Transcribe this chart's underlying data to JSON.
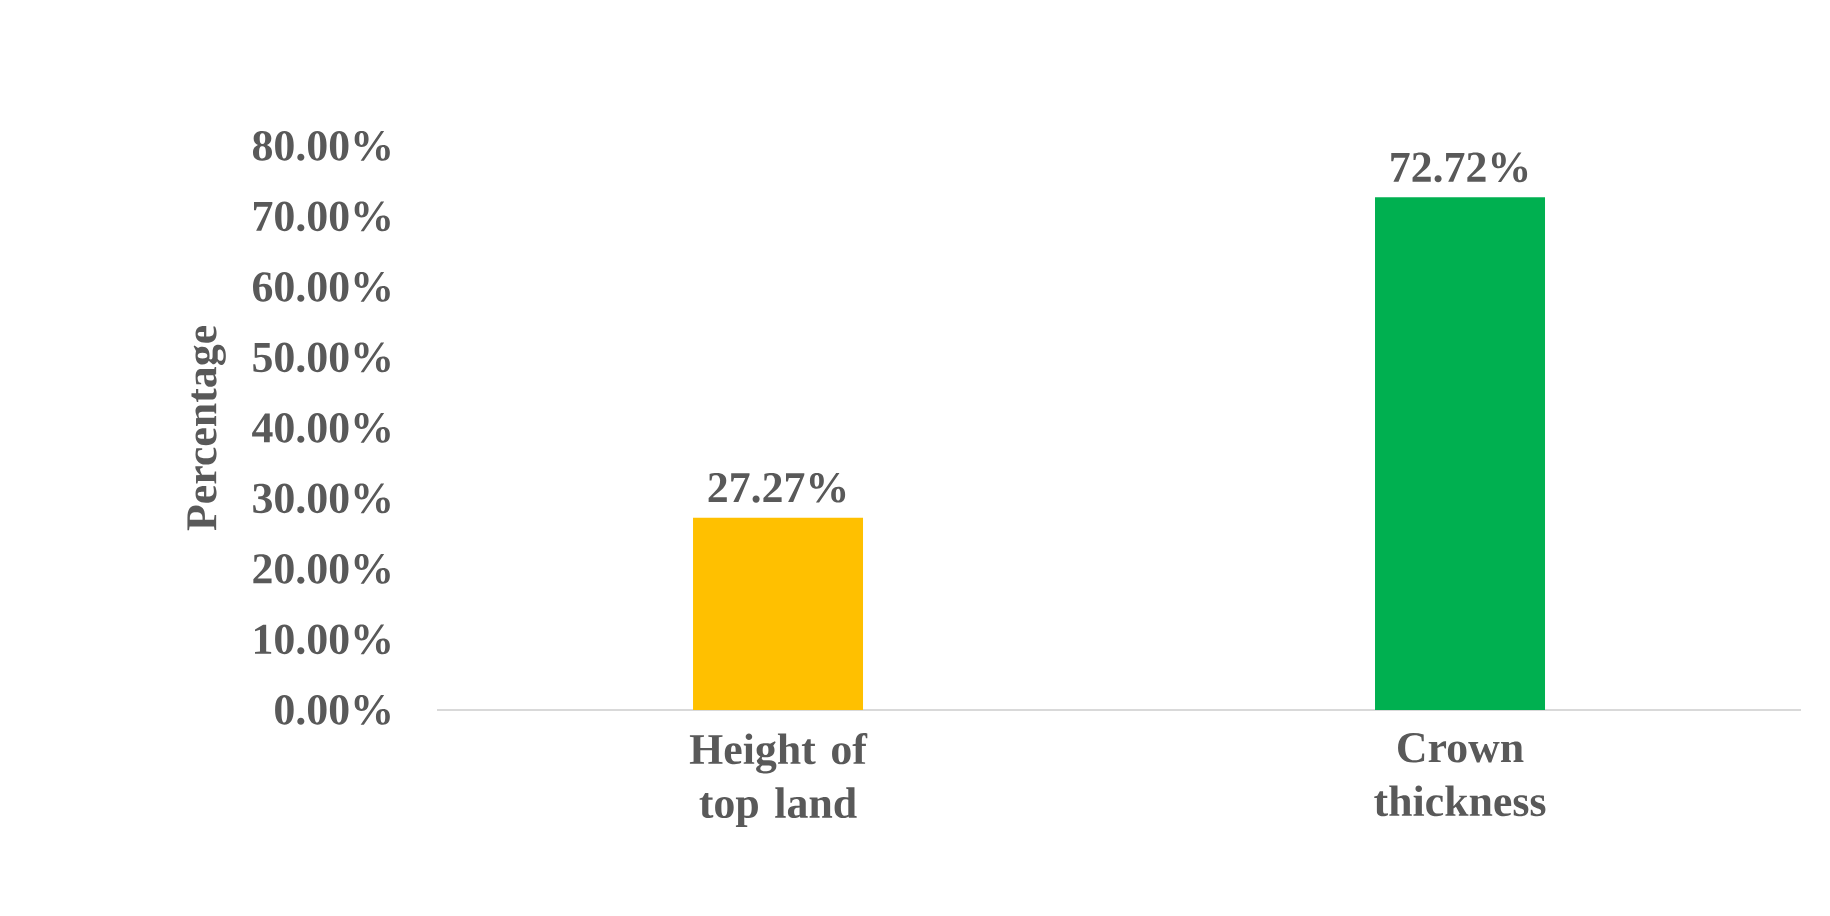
{
  "chart_data": {
    "type": "bar",
    "ylabel": "Percentage",
    "categories": [
      "Height of top land",
      "Crown thickness"
    ],
    "values": [
      27.27,
      72.72
    ],
    "colors": [
      "#ffc000",
      "#00b050"
    ],
    "value_labels": [
      "27.27%",
      "72.72%"
    ],
    "ylim": [
      0,
      80
    ],
    "yticks": [
      {
        "value": 0,
        "label": "0.00%"
      },
      {
        "value": 10,
        "label": "10.00%"
      },
      {
        "value": 20,
        "label": "20.00%"
      },
      {
        "value": 30,
        "label": "30.00%"
      },
      {
        "value": 40,
        "label": "40.00%"
      },
      {
        "value": 50,
        "label": "50.00%"
      },
      {
        "value": 60,
        "label": "60.00%"
      },
      {
        "value": 70,
        "label": "70.00%"
      },
      {
        "value": 80,
        "label": "80.00%"
      }
    ]
  }
}
